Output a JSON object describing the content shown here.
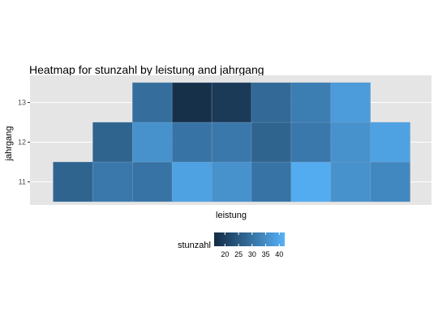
{
  "chart_data": {
    "type": "heatmap",
    "title": "Heatmap for stunzahl by leistung and jahrgang",
    "xlabel": "leistung",
    "ylabel": "jahrgang",
    "x_tick_labels": [],
    "y_categories": [
      "11",
      "12",
      "13"
    ],
    "cells": [
      {
        "x": 1,
        "y": "11",
        "value": 27
      },
      {
        "x": 2,
        "y": "11",
        "value": 31
      },
      {
        "x": 3,
        "y": "11",
        "value": 30
      },
      {
        "x": 4,
        "y": "11",
        "value": 39
      },
      {
        "x": 5,
        "y": "11",
        "value": 36
      },
      {
        "x": 6,
        "y": "11",
        "value": 30
      },
      {
        "x": 7,
        "y": "11",
        "value": 41
      },
      {
        "x": 8,
        "y": "11",
        "value": 36
      },
      {
        "x": 9,
        "y": "11",
        "value": 34
      },
      {
        "x": 2,
        "y": "12",
        "value": 27
      },
      {
        "x": 3,
        "y": "12",
        "value": 36
      },
      {
        "x": 4,
        "y": "12",
        "value": 30
      },
      {
        "x": 5,
        "y": "12",
        "value": 31
      },
      {
        "x": 6,
        "y": "12",
        "value": 27
      },
      {
        "x": 7,
        "y": "12",
        "value": 31
      },
      {
        "x": 8,
        "y": "12",
        "value": 36
      },
      {
        "x": 9,
        "y": "12",
        "value": 39
      },
      {
        "x": 3,
        "y": "13",
        "value": 29
      },
      {
        "x": 4,
        "y": "13",
        "value": 17
      },
      {
        "x": 5,
        "y": "13",
        "value": 19
      },
      {
        "x": 6,
        "y": "13",
        "value": 28
      },
      {
        "x": 7,
        "y": "13",
        "value": 32
      },
      {
        "x": 8,
        "y": "13",
        "value": 38
      }
    ],
    "color_scale": {
      "min": 16,
      "max": 42,
      "low_color": "#132B43",
      "high_color": "#56B1F7"
    },
    "legend": {
      "title": "stunzahl",
      "breaks": [
        20,
        25,
        30,
        35,
        40
      ],
      "labels": [
        "20",
        "25",
        "30",
        "35",
        "40"
      ],
      "position": "bottom"
    },
    "panel_background": "#e5e5e5",
    "grid": true,
    "gridline_color": "#ffffff"
  }
}
